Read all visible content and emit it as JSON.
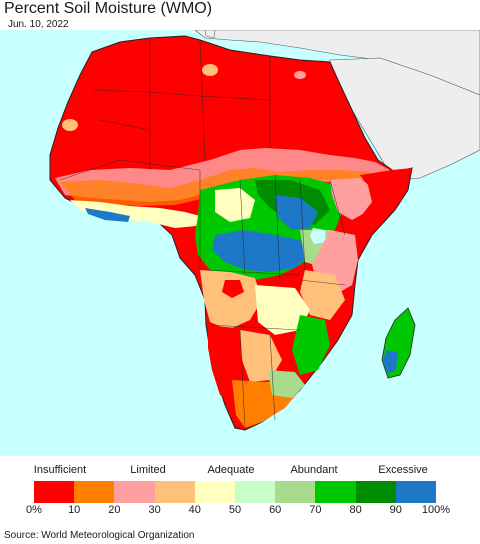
{
  "title": "Percent Soil Moisture (WMO)",
  "date": "Jun. 10, 2022",
  "source": "Source: World Meteorological Organization",
  "legend": {
    "categories": [
      "Insufficient",
      "Limited",
      "Adequate",
      "Abundant",
      "Excessive"
    ],
    "ticks": [
      "0%",
      "10",
      "20",
      "30",
      "40",
      "50",
      "60",
      "70",
      "80",
      "90",
      "100%"
    ],
    "colors": [
      "#ff0000",
      "#ff8000",
      "#ffa0a0",
      "#ffc07a",
      "#ffffc0",
      "#c8ffc8",
      "#a8dc8c",
      "#00c800",
      "#008c00",
      "#1e78c8"
    ]
  },
  "map_colors": {
    "ocean": "#c8ffff",
    "non_africa": "#eeeeee",
    "border": "#222222"
  }
}
